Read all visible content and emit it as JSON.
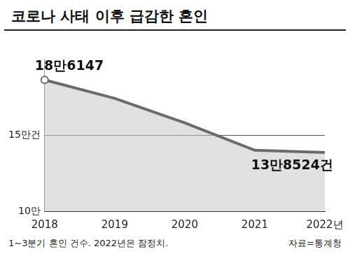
{
  "chart_data": {
    "type": "line",
    "title": "코로나 사태 이후 급감한 혼인",
    "categories": [
      "2018",
      "2019",
      "2020",
      "2021",
      "2022년"
    ],
    "values": [
      186147,
      174000,
      158000,
      140000,
      138524
    ],
    "value_labels": [
      "18만6147",
      null,
      null,
      null,
      "13만8524건"
    ],
    "data_labels": true,
    "color": "#6b6b6b",
    "ylim": [
      100000,
      200000
    ],
    "yticks": [
      {
        "value": 100000,
        "label": "10만"
      },
      {
        "value": 150000,
        "label": "15만건"
      }
    ],
    "grid": true,
    "notes": [
      "1~3분기 혼인 건수. 2022년은 잠정치.",
      "자료=통계청"
    ]
  }
}
